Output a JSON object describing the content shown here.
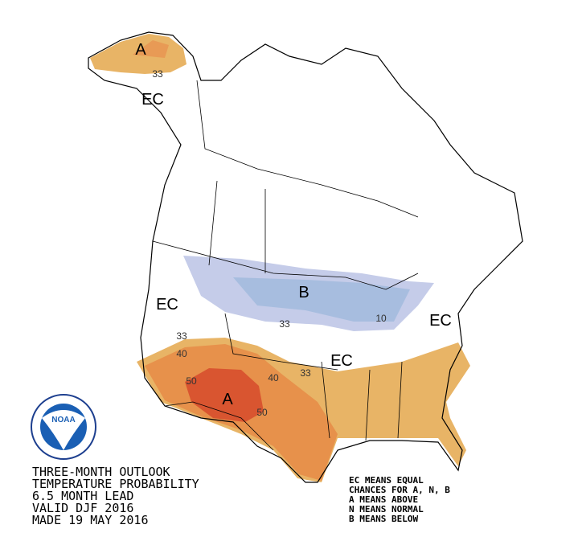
{
  "title_block": {
    "lines": [
      "THREE-MONTH OUTLOOK",
      "TEMPERATURE PROBABILITY",
      "6.5 MONTH LEAD",
      "VALID DJF 2016",
      "MADE 19 MAY 2016"
    ]
  },
  "legend": {
    "lines": [
      "EC MEANS EQUAL",
      "CHANCES FOR A, N, B",
      "A MEANS ABOVE",
      "N MEANS NORMAL",
      "B MEANS BELOW"
    ]
  },
  "map_labels": [
    "A",
    "33",
    "EC",
    "EC",
    "B",
    "33",
    "10",
    "EC",
    "33",
    "40",
    "EC",
    "33",
    "40",
    "50",
    "A",
    "50"
  ],
  "logo": {
    "text": "NOAA"
  }
}
